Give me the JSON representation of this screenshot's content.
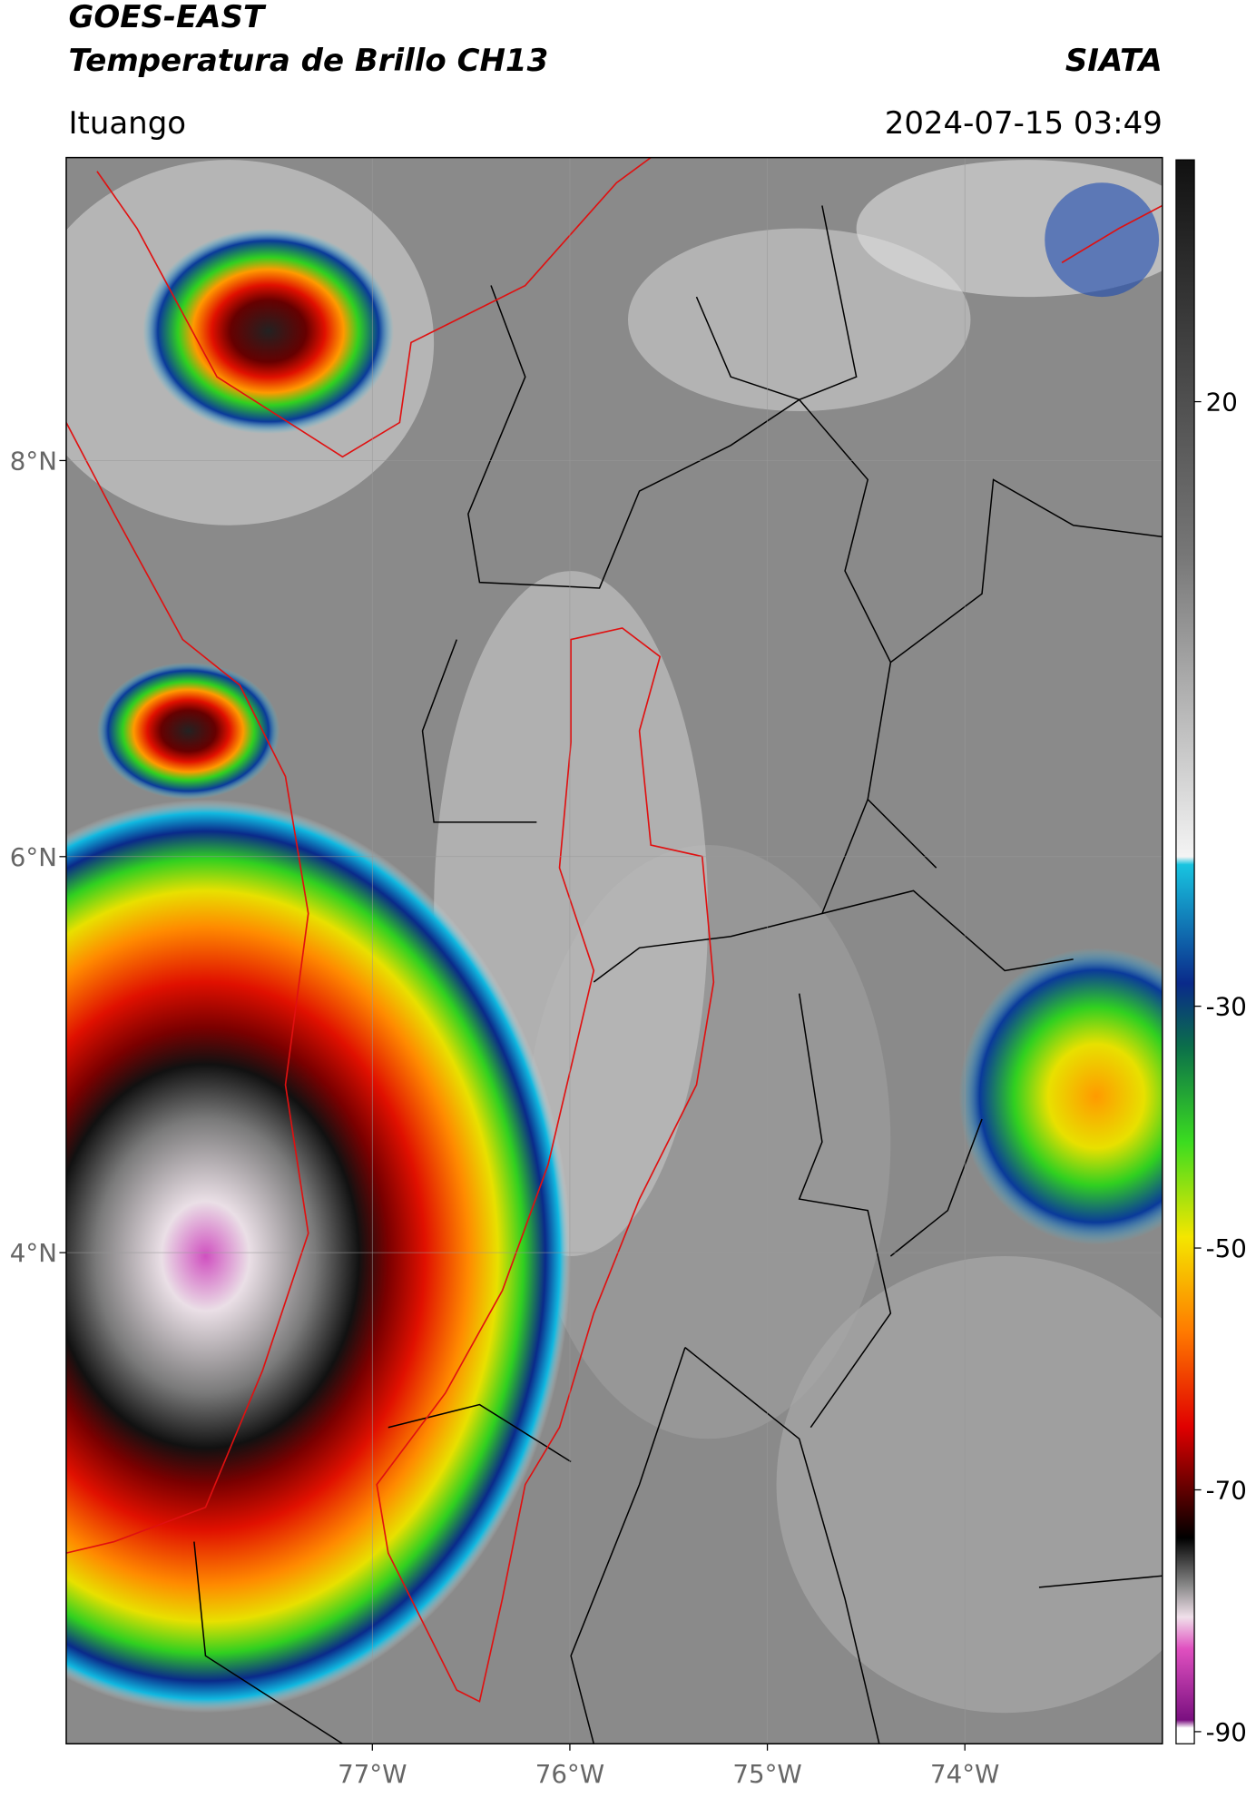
{
  "header": {
    "title": "GOES-EAST",
    "subtitle": "Temperatura de Brillo CH13",
    "agency": "SIATA",
    "location": "Ituango",
    "datetime": "2024-07-15 03:49"
  },
  "map": {
    "xlim": [
      -78.55,
      -73.0
    ],
    "ylim": [
      1.52,
      9.53
    ],
    "xticks": [
      {
        "value": -77,
        "label": "77°W"
      },
      {
        "value": -76,
        "label": "76°W"
      },
      {
        "value": -75,
        "label": "75°W"
      },
      {
        "value": -74,
        "label": "74°W"
      }
    ],
    "yticks": [
      {
        "value": 8,
        "label": "8°N"
      },
      {
        "value": 6,
        "label": "6°N"
      },
      {
        "value": 4,
        "label": "4°N"
      }
    ]
  },
  "colorbar": {
    "range": [
      -91,
      40
    ],
    "ticks": [
      20,
      -30,
      -50,
      -70,
      -90
    ]
  }
}
